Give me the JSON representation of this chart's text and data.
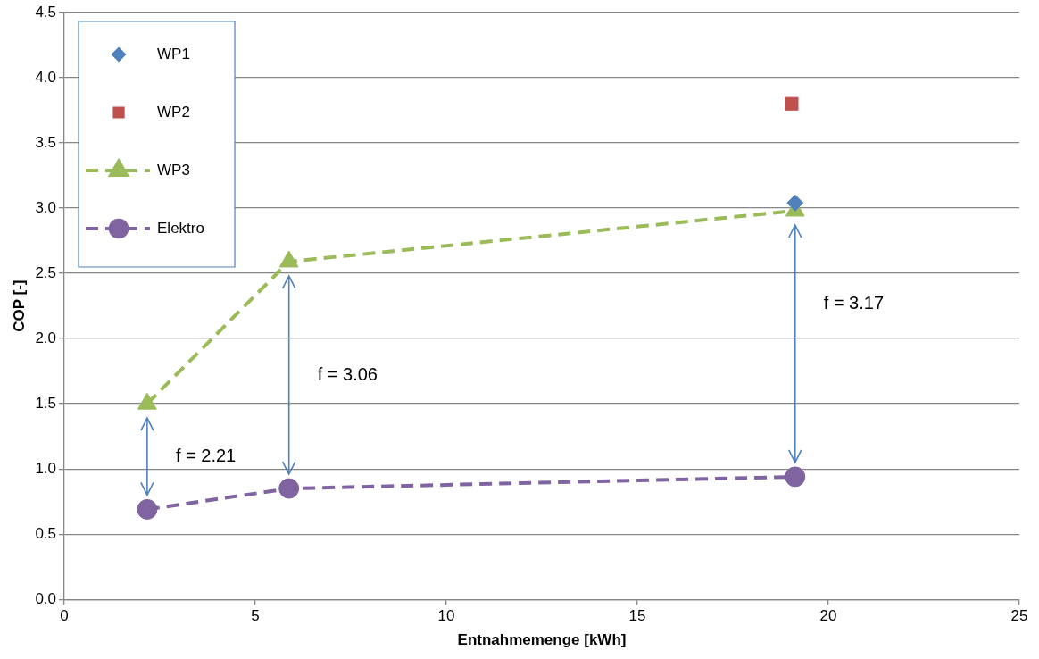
{
  "chart_data": {
    "type": "scatter",
    "xlabel": "Entnahmemenge [kWh]",
    "ylabel": "COP [-]",
    "xlim": [
      0,
      25
    ],
    "xticks": [
      0,
      5,
      10,
      15,
      20,
      25
    ],
    "ylim": [
      0,
      4.5
    ],
    "yticks": [
      {
        "value": 0,
        "label": "0.0"
      },
      {
        "value": 0.5,
        "label": "0.5"
      },
      {
        "value": 1,
        "label": "1.0"
      },
      {
        "value": 1.5,
        "label": "1.5"
      },
      {
        "value": 2,
        "label": "2.0"
      },
      {
        "value": 2.5,
        "label": "2.5"
      },
      {
        "value": 3,
        "label": "3.0"
      },
      {
        "value": 3.5,
        "label": "3.5"
      },
      {
        "value": 4,
        "label": "4.0"
      },
      {
        "value": 4.5,
        "label": "4.5"
      }
    ],
    "grid": "y",
    "legend": "top left",
    "series": [
      {
        "name": "WP1",
        "marker": "diamond",
        "color": "#4f81bd",
        "x": [
          19.13
        ],
        "values": [
          3.04
        ]
      },
      {
        "name": "WP2",
        "marker": "square",
        "color": "#c0504d",
        "x": [
          19.04
        ],
        "values": [
          3.8
        ]
      },
      {
        "name": "WP3",
        "type": "line",
        "marker": "triangle",
        "line_style": "dashed",
        "color": "#9bbb59",
        "x": [
          2.17,
          5.88,
          19.13
        ],
        "values": [
          1.5,
          2.59,
          2.98
        ]
      },
      {
        "name": "Elektro",
        "type": "line",
        "marker": "circle",
        "line_style": "dashed",
        "color": "#8064a2",
        "x": [
          2.17,
          5.88,
          19.13
        ],
        "values": [
          0.69,
          0.85,
          0.94
        ]
      }
    ],
    "annotations": [
      "f = 2.21",
      "f = 3.06",
      "f = 3.17"
    ]
  }
}
